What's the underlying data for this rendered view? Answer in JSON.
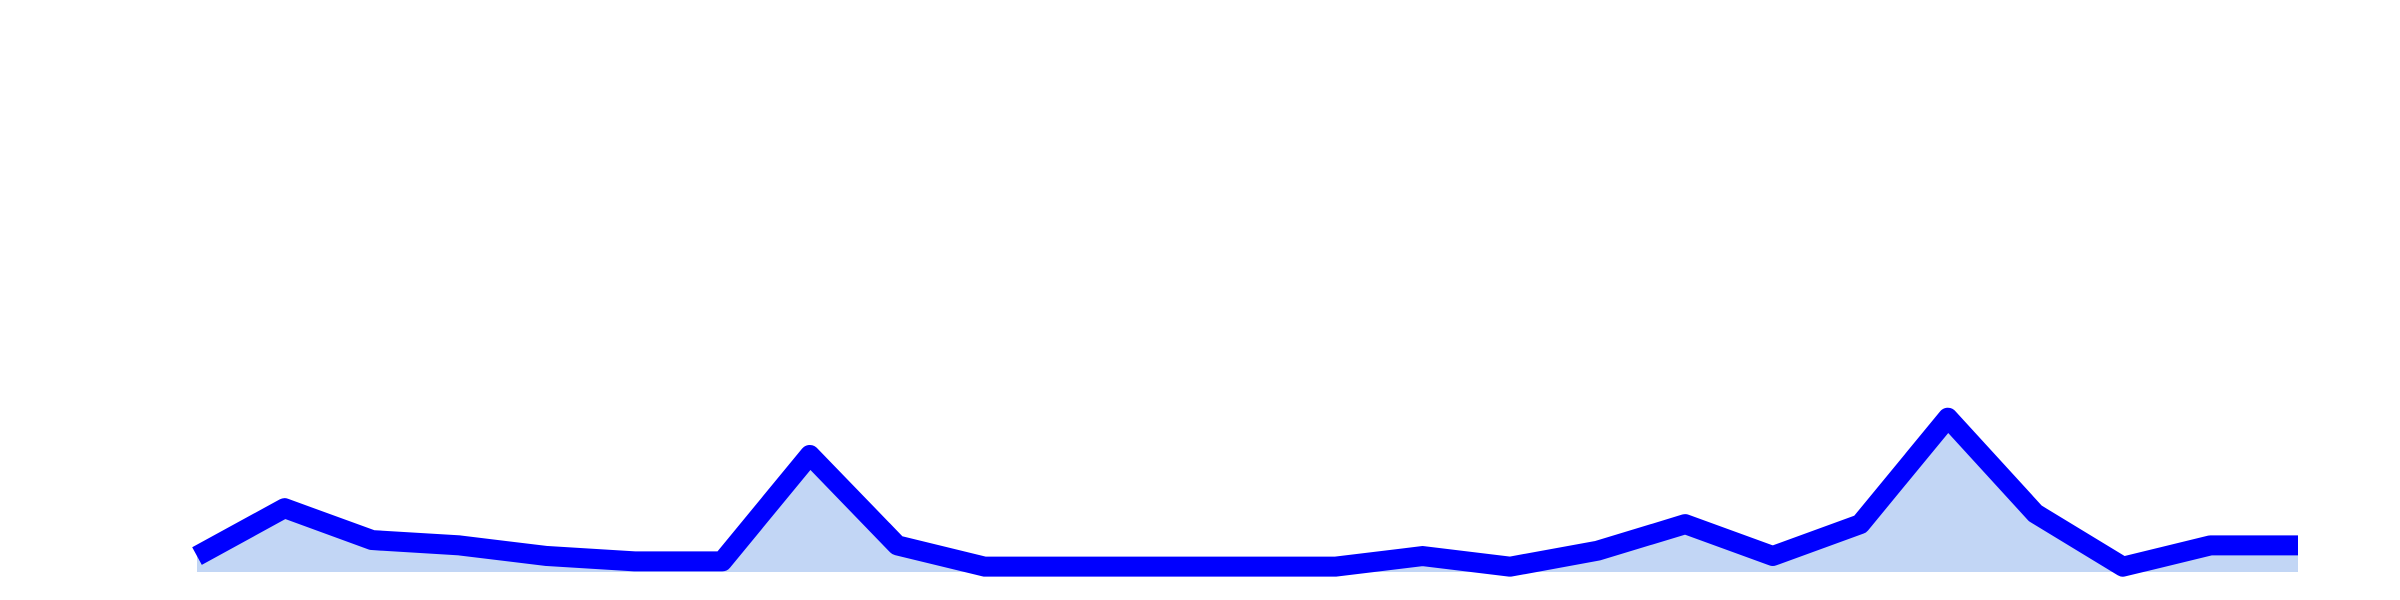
{
  "chart_data": {
    "type": "area",
    "title": "",
    "xlabel": "",
    "ylabel": "",
    "grid": false,
    "legend": "none",
    "x": [
      0,
      1,
      2,
      3,
      4,
      5,
      6,
      7,
      8,
      9,
      10,
      11,
      12,
      13,
      14,
      15,
      16,
      17,
      18,
      19,
      20,
      21,
      22,
      23,
      24
    ],
    "ylim": [
      0,
      100
    ],
    "series": [
      {
        "name": "",
        "line_color": "#0000ff",
        "fill_color": "#c2d6f5",
        "values": [
          3,
          12,
          6,
          5,
          3,
          2,
          2,
          22,
          5,
          1,
          1,
          1,
          1,
          1,
          3,
          1,
          4,
          9,
          3,
          9,
          29,
          11,
          1,
          5,
          5
        ]
      }
    ]
  }
}
